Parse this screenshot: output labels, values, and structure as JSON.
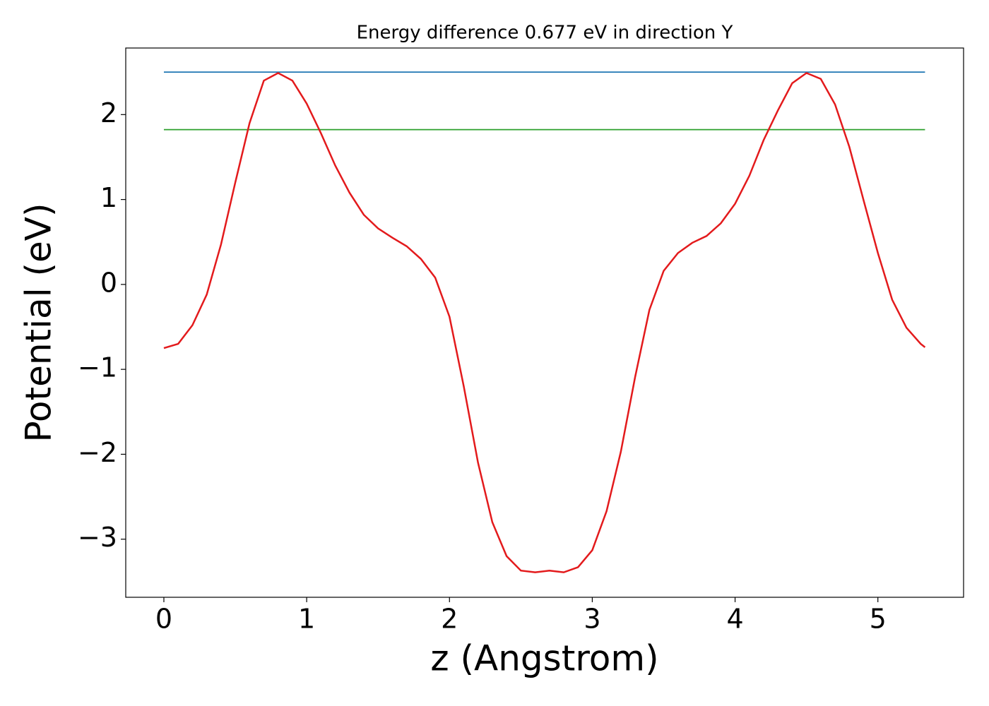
{
  "chart_data": {
    "type": "line",
    "title": "Energy difference 0.677 eV in direction Y",
    "x_label": "z (Angstrom)",
    "y_label": "Potential (eV)",
    "xlim": [
      -0.267,
      5.6
    ],
    "ylim": [
      -3.684,
      2.784
    ],
    "xticks": [
      0,
      1,
      2,
      3,
      4,
      5
    ],
    "yticks": [
      {
        "value": -3,
        "label": "−3"
      },
      {
        "value": -2,
        "label": "−2"
      },
      {
        "value": -1,
        "label": "−1"
      },
      0,
      1,
      2
    ],
    "series": [
      {
        "color": "#1f77b4",
        "x": [
          0,
          5.33
        ],
        "values": [
          2.5,
          2.5
        ]
      },
      {
        "color": "#2ca02c",
        "x": [
          0,
          5.33
        ],
        "values": [
          1.823,
          1.823
        ]
      },
      {
        "color": "#e31a1c",
        "x": [
          0,
          0.1,
          0.2,
          0.3,
          0.4,
          0.5,
          0.6,
          0.7,
          0.8,
          0.9,
          1.0,
          1.1,
          1.2,
          1.3,
          1.4,
          1.5,
          1.6,
          1.7,
          1.8,
          1.9,
          2.0,
          2.1,
          2.2,
          2.3,
          2.4,
          2.5,
          2.6,
          2.7,
          2.8,
          2.9,
          3.0,
          3.1,
          3.2,
          3.3,
          3.4,
          3.5,
          3.6,
          3.7,
          3.8,
          3.9,
          4.0,
          4.1,
          4.2,
          4.3,
          4.4,
          4.5,
          4.6,
          4.7,
          4.8,
          4.9,
          5.0,
          5.1,
          5.2,
          5.3,
          5.33
        ],
        "values": [
          -0.75,
          -0.7,
          -0.48,
          -0.12,
          0.47,
          1.2,
          1.9,
          2.4,
          2.49,
          2.4,
          2.13,
          1.78,
          1.4,
          1.08,
          0.82,
          0.66,
          0.55,
          0.45,
          0.3,
          0.08,
          -0.38,
          -1.2,
          -2.1,
          -2.8,
          -3.2,
          -3.37,
          -3.39,
          -3.37,
          -3.39,
          -3.33,
          -3.13,
          -2.67,
          -1.97,
          -1.09,
          -0.3,
          0.16,
          0.37,
          0.49,
          0.57,
          0.72,
          0.95,
          1.28,
          1.7,
          2.05,
          2.37,
          2.49,
          2.42,
          2.12,
          1.62,
          0.99,
          0.37,
          -0.18,
          -0.51,
          -0.7,
          -0.74
        ]
      }
    ]
  }
}
